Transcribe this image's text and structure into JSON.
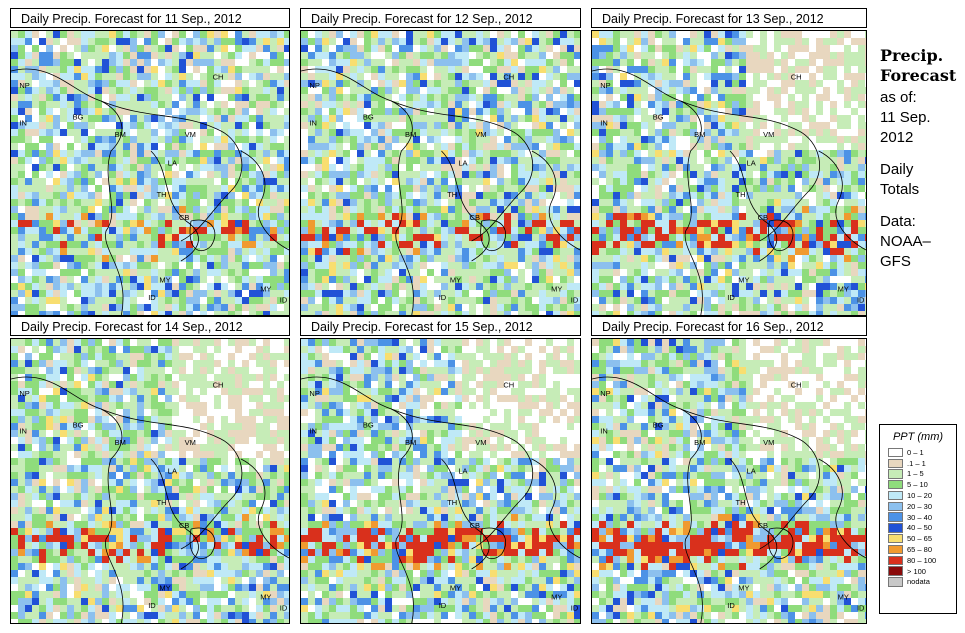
{
  "panels": [
    {
      "title": "Daily Precip. Forecast for  11 Sep., 2012",
      "heavy": 0.3
    },
    {
      "title": "Daily Precip. Forecast for  12 Sep., 2012",
      "heavy": 0.35
    },
    {
      "title": "Daily Precip. Forecast for  13 Sep., 2012",
      "heavy": 0.5
    },
    {
      "title": "Daily Precip. Forecast for  14 Sep., 2012",
      "heavy": 0.45
    },
    {
      "title": "Daily Precip. Forecast for  15 Sep., 2012",
      "heavy": 0.55
    },
    {
      "title": "Daily Precip. Forecast for  16 Sep., 2012",
      "heavy": 0.7
    }
  ],
  "map_labels": [
    "NP",
    "IN",
    "BG",
    "BM",
    "VM",
    "LA",
    "TH",
    "CB",
    "CH",
    "MY",
    "ID",
    "MY",
    "ID"
  ],
  "side": {
    "title_line1": "Precip.",
    "title_line2": "Forecast",
    "as_of": "as of:",
    "date_line1": "11 Sep.",
    "date_line2": "2012",
    "daily_line1": "Daily",
    "daily_line2": "Totals",
    "data_line1": "Data:",
    "data_line2": "NOAA–",
    "data_line3": "GFS"
  },
  "legend": {
    "title": "PPT (mm)",
    "items": [
      {
        "label": "0 – 1",
        "color": "#ffffff"
      },
      {
        "label": ".1 – 1",
        "color": "#e8d7bf"
      },
      {
        "label": "1 – 5",
        "color": "#c6ecb7"
      },
      {
        "label": "5 – 10",
        "color": "#8fdc7c"
      },
      {
        "label": "10 – 20",
        "color": "#bfe9f7"
      },
      {
        "label": "20 – 30",
        "color": "#8cc0ee"
      },
      {
        "label": "30 – 40",
        "color": "#4c92e6"
      },
      {
        "label": "40 – 50",
        "color": "#2152d6"
      },
      {
        "label": "50 – 65",
        "color": "#f8de70"
      },
      {
        "label": "65 – 80",
        "color": "#f09a30"
      },
      {
        "label": "80 – 100",
        "color": "#d9301c"
      },
      {
        "label": "> 100",
        "color": "#8a0a0a"
      },
      {
        "label": "nodata",
        "color": "#c8c8c8"
      }
    ]
  }
}
